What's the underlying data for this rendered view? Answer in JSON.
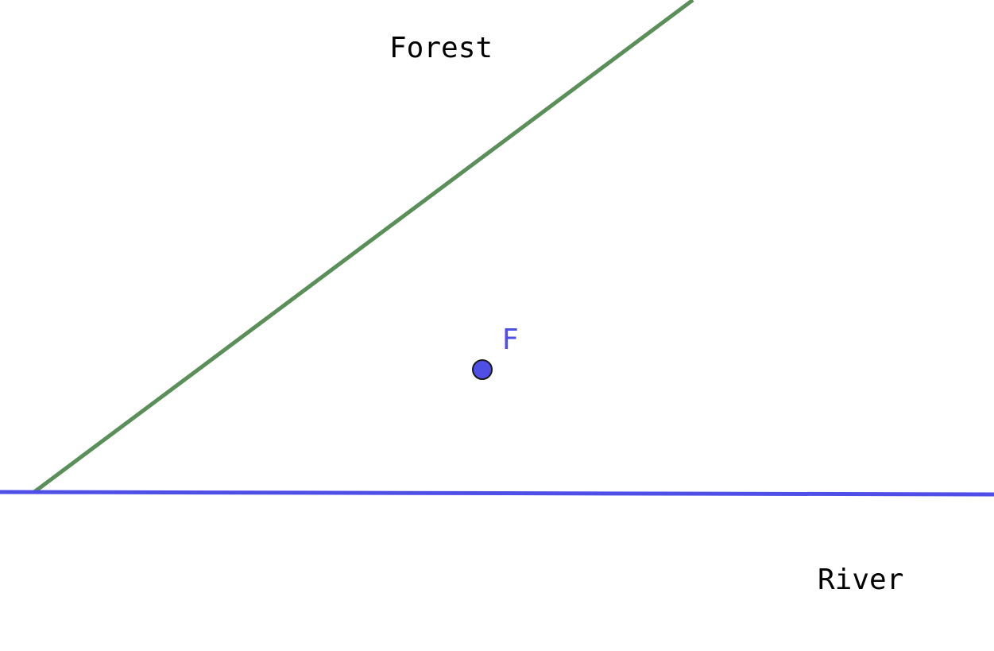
{
  "colors": {
    "background": "#ffffff",
    "forest_edge": "#5b8f59",
    "river": "#4f4fe8",
    "point_fill": "#4f4fe8",
    "point_stroke": "#1a1a1a",
    "point_label": "#4f4fe8",
    "text": "#000000"
  },
  "regions": {
    "forest_label": "Forest",
    "river_label": "River"
  },
  "lines": [
    {
      "name": "forest-edge",
      "color_key": "forest_edge"
    },
    {
      "name": "river",
      "color_key": "river"
    }
  ],
  "point": {
    "label": "F"
  }
}
